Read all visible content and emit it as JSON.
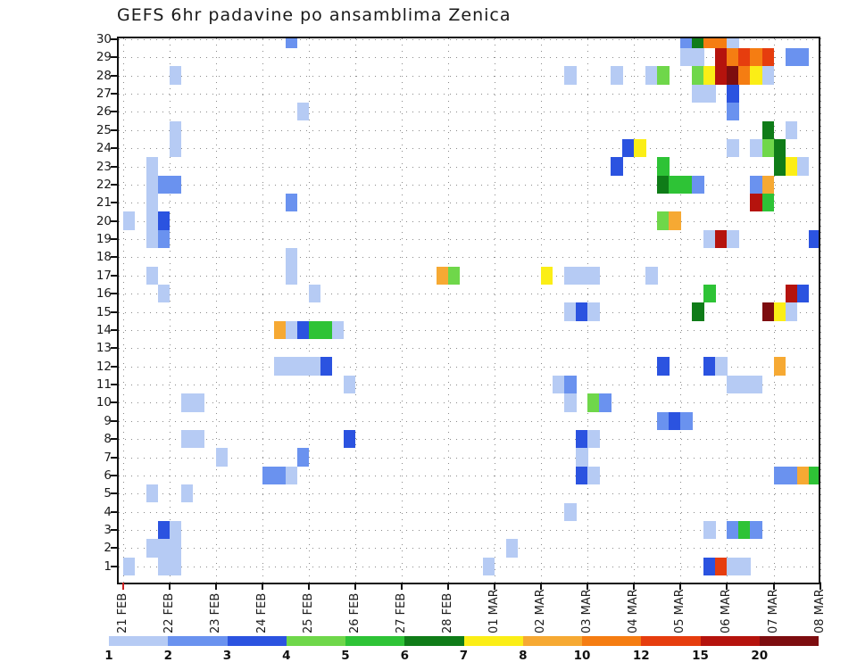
{
  "title": "GEFS 6hr padavine po ansamblima Zenica",
  "chart_data": {
    "type": "heatmap",
    "title": "GEFS 6hr padavine po ansamblima Zenica",
    "x_axis": {
      "tick_labels": [
        "21 FEB",
        "22 FEB",
        "23 FEB",
        "24 FEB",
        "25 FEB",
        "26 FEB",
        "27 FEB",
        "28 FEB",
        "01 MAR",
        "02 MAR",
        "03 MAR",
        "04 MAR",
        "05 MAR",
        "06 MAR",
        "07 MAR",
        "08 MAR"
      ],
      "steps_per_day": 4,
      "step_hours": 6
    },
    "y_axis": {
      "tick_labels": [
        "30",
        "29",
        "28",
        "27",
        "26",
        "25",
        "24",
        "23",
        "22",
        "21",
        "20",
        "19",
        "18",
        "17",
        "16",
        "15",
        "14",
        "13",
        "12",
        "11",
        "10",
        "9",
        "8",
        "7",
        "6",
        "5",
        "4",
        "3",
        "2",
        "1"
      ],
      "meaning": "ensemble member"
    },
    "colorbar": {
      "labels": [
        "1",
        "2",
        "3",
        "4",
        "5",
        "6",
        "7",
        "8",
        "10",
        "12",
        "15",
        "20"
      ],
      "levels": [
        1,
        2,
        3,
        4,
        5,
        6,
        7,
        8,
        10,
        12,
        15,
        20
      ],
      "colors": [
        "#b6cbf4",
        "#6a92ef",
        "#2b53e0",
        "#6fd74a",
        "#2ec336",
        "#0f7c18",
        "#fbee16",
        "#f6a933",
        "#f57d12",
        "#e63d0e",
        "#b5130d",
        "#7d0d0f"
      ]
    },
    "cells_fields": [
      "member",
      "step_6h_from_21FEB_00h",
      "value_class"
    ],
    "cells": [
      [
        30,
        14,
        2
      ],
      [
        30,
        48,
        2
      ],
      [
        30,
        49,
        6
      ],
      [
        30,
        50,
        10
      ],
      [
        30,
        51,
        10
      ],
      [
        30,
        52,
        1
      ],
      [
        29,
        48,
        1
      ],
      [
        29,
        49,
        1
      ],
      [
        29,
        51,
        15
      ],
      [
        29,
        52,
        10
      ],
      [
        29,
        53,
        12
      ],
      [
        29,
        54,
        10
      ],
      [
        29,
        55,
        12
      ],
      [
        29,
        57,
        2
      ],
      [
        29,
        58,
        2
      ],
      [
        28,
        4,
        1
      ],
      [
        28,
        38,
        1
      ],
      [
        28,
        42,
        1
      ],
      [
        28,
        45,
        1
      ],
      [
        28,
        46,
        4
      ],
      [
        28,
        49,
        4
      ],
      [
        28,
        50,
        7
      ],
      [
        28,
        51,
        15
      ],
      [
        28,
        52,
        20
      ],
      [
        28,
        53,
        10
      ],
      [
        28,
        54,
        7
      ],
      [
        28,
        55,
        1
      ],
      [
        27,
        49,
        1
      ],
      [
        27,
        50,
        1
      ],
      [
        27,
        52,
        3
      ],
      [
        26,
        15,
        1
      ],
      [
        26,
        52,
        2
      ],
      [
        25,
        4,
        1
      ],
      [
        25,
        55,
        6
      ],
      [
        25,
        57,
        1
      ],
      [
        24,
        4,
        1
      ],
      [
        24,
        43,
        3
      ],
      [
        24,
        44,
        7
      ],
      [
        24,
        52,
        1
      ],
      [
        24,
        54,
        1
      ],
      [
        24,
        55,
        4
      ],
      [
        24,
        56,
        6
      ],
      [
        23,
        2,
        1
      ],
      [
        23,
        42,
        3
      ],
      [
        23,
        46,
        5
      ],
      [
        23,
        56,
        6
      ],
      [
        23,
        57,
        7
      ],
      [
        23,
        58,
        1
      ],
      [
        22,
        2,
        1
      ],
      [
        22,
        3,
        2
      ],
      [
        22,
        4,
        2
      ],
      [
        22,
        46,
        6
      ],
      [
        22,
        47,
        5
      ],
      [
        22,
        48,
        5
      ],
      [
        22,
        49,
        2
      ],
      [
        22,
        54,
        2
      ],
      [
        22,
        55,
        8
      ],
      [
        21,
        2,
        1
      ],
      [
        21,
        14,
        2
      ],
      [
        21,
        54,
        15
      ],
      [
        21,
        55,
        5
      ],
      [
        20,
        0,
        1
      ],
      [
        20,
        2,
        1
      ],
      [
        20,
        3,
        3
      ],
      [
        20,
        46,
        4
      ],
      [
        20,
        47,
        8
      ],
      [
        19,
        2,
        1
      ],
      [
        19,
        3,
        2
      ],
      [
        19,
        50,
        1
      ],
      [
        19,
        51,
        15
      ],
      [
        19,
        52,
        1
      ],
      [
        19,
        59,
        3
      ],
      [
        18,
        14,
        1
      ],
      [
        17,
        2,
        1
      ],
      [
        17,
        14,
        1
      ],
      [
        17,
        27,
        8
      ],
      [
        17,
        28,
        4
      ],
      [
        17,
        36,
        7
      ],
      [
        17,
        38,
        1
      ],
      [
        17,
        39,
        1
      ],
      [
        17,
        40,
        1
      ],
      [
        17,
        45,
        1
      ],
      [
        16,
        3,
        1
      ],
      [
        16,
        16,
        1
      ],
      [
        16,
        50,
        5
      ],
      [
        16,
        57,
        15
      ],
      [
        16,
        58,
        3
      ],
      [
        15,
        38,
        1
      ],
      [
        15,
        39,
        3
      ],
      [
        15,
        40,
        1
      ],
      [
        15,
        49,
        6
      ],
      [
        15,
        55,
        20
      ],
      [
        15,
        56,
        7
      ],
      [
        15,
        57,
        1
      ],
      [
        14,
        13,
        8
      ],
      [
        14,
        14,
        1
      ],
      [
        14,
        15,
        3
      ],
      [
        14,
        16,
        5
      ],
      [
        14,
        17,
        5
      ],
      [
        14,
        18,
        1
      ],
      [
        12,
        13,
        1
      ],
      [
        12,
        14,
        1
      ],
      [
        12,
        15,
        1
      ],
      [
        12,
        16,
        1
      ],
      [
        12,
        17,
        3
      ],
      [
        12,
        46,
        3
      ],
      [
        12,
        50,
        3
      ],
      [
        12,
        51,
        1
      ],
      [
        12,
        56,
        8
      ],
      [
        11,
        19,
        1
      ],
      [
        11,
        37,
        1
      ],
      [
        11,
        38,
        2
      ],
      [
        11,
        52,
        1
      ],
      [
        11,
        53,
        1
      ],
      [
        11,
        54,
        1
      ],
      [
        10,
        5,
        1
      ],
      [
        10,
        6,
        1
      ],
      [
        10,
        38,
        1
      ],
      [
        10,
        40,
        4
      ],
      [
        10,
        41,
        2
      ],
      [
        9,
        46,
        2
      ],
      [
        9,
        47,
        3
      ],
      [
        9,
        48,
        2
      ],
      [
        8,
        5,
        1
      ],
      [
        8,
        6,
        1
      ],
      [
        8,
        19,
        3
      ],
      [
        8,
        39,
        3
      ],
      [
        8,
        40,
        1
      ],
      [
        7,
        8,
        1
      ],
      [
        7,
        15,
        2
      ],
      [
        7,
        39,
        1
      ],
      [
        6,
        12,
        2
      ],
      [
        6,
        13,
        2
      ],
      [
        6,
        14,
        1
      ],
      [
        6,
        39,
        3
      ],
      [
        6,
        40,
        1
      ],
      [
        6,
        56,
        2
      ],
      [
        6,
        57,
        2
      ],
      [
        6,
        58,
        8
      ],
      [
        6,
        59,
        5
      ],
      [
        5,
        2,
        1
      ],
      [
        5,
        5,
        1
      ],
      [
        4,
        38,
        1
      ],
      [
        3,
        3,
        3
      ],
      [
        3,
        4,
        1
      ],
      [
        3,
        50,
        1
      ],
      [
        3,
        52,
        2
      ],
      [
        3,
        53,
        5
      ],
      [
        3,
        54,
        2
      ],
      [
        2,
        2,
        1
      ],
      [
        2,
        3,
        1
      ],
      [
        2,
        4,
        1
      ],
      [
        2,
        33,
        1
      ],
      [
        1,
        0,
        1
      ],
      [
        1,
        3,
        1
      ],
      [
        1,
        4,
        1
      ],
      [
        1,
        31,
        1
      ],
      [
        1,
        50,
        3
      ],
      [
        1,
        51,
        12
      ],
      [
        1,
        52,
        1
      ],
      [
        1,
        53,
        1
      ]
    ]
  }
}
